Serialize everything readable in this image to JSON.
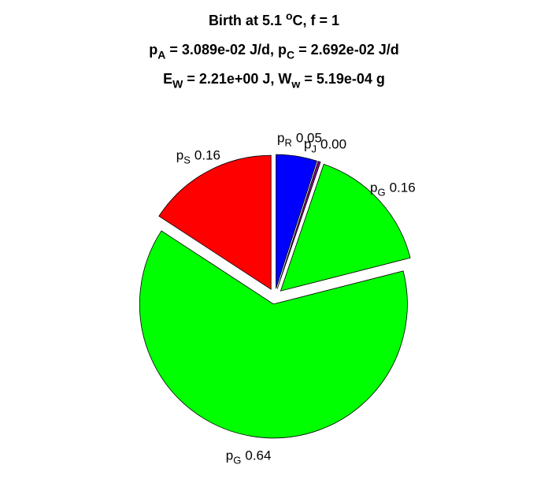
{
  "chart_data": {
    "type": "pie",
    "title": [
      [
        "Birth at 5.1 ",
        {
          "sup": "o"
        },
        "C, f = 1"
      ],
      [
        "p",
        {
          "sub": "A"
        },
        " = 3.089e-02 J/d, p",
        {
          "sub": "C"
        },
        " = 2.692e-02 J/d"
      ],
      [
        "E",
        {
          "sub": "W"
        },
        " = 2.21e+00 J, W",
        {
          "sub": "w"
        },
        " = 5.19e-04 g"
      ]
    ],
    "categories": [
      [
        "p",
        {
          "sub": "R"
        }
      ],
      [
        "p",
        {
          "sub": "J"
        }
      ],
      [
        "p",
        {
          "sub": "G"
        }
      ],
      [
        "p",
        {
          "sub": "G"
        }
      ],
      [
        "p",
        {
          "sub": "S"
        }
      ]
    ],
    "values": [
      0.05,
      0.003,
      0.16,
      0.64,
      0.16
    ],
    "value_labels": [
      "0.05",
      "0.00",
      "0.16",
      "0.64",
      "0.16"
    ],
    "colors": [
      "#0000ff",
      "#800080",
      "#00ff00",
      "#00ff00",
      "#ff0000"
    ],
    "explode": true
  }
}
